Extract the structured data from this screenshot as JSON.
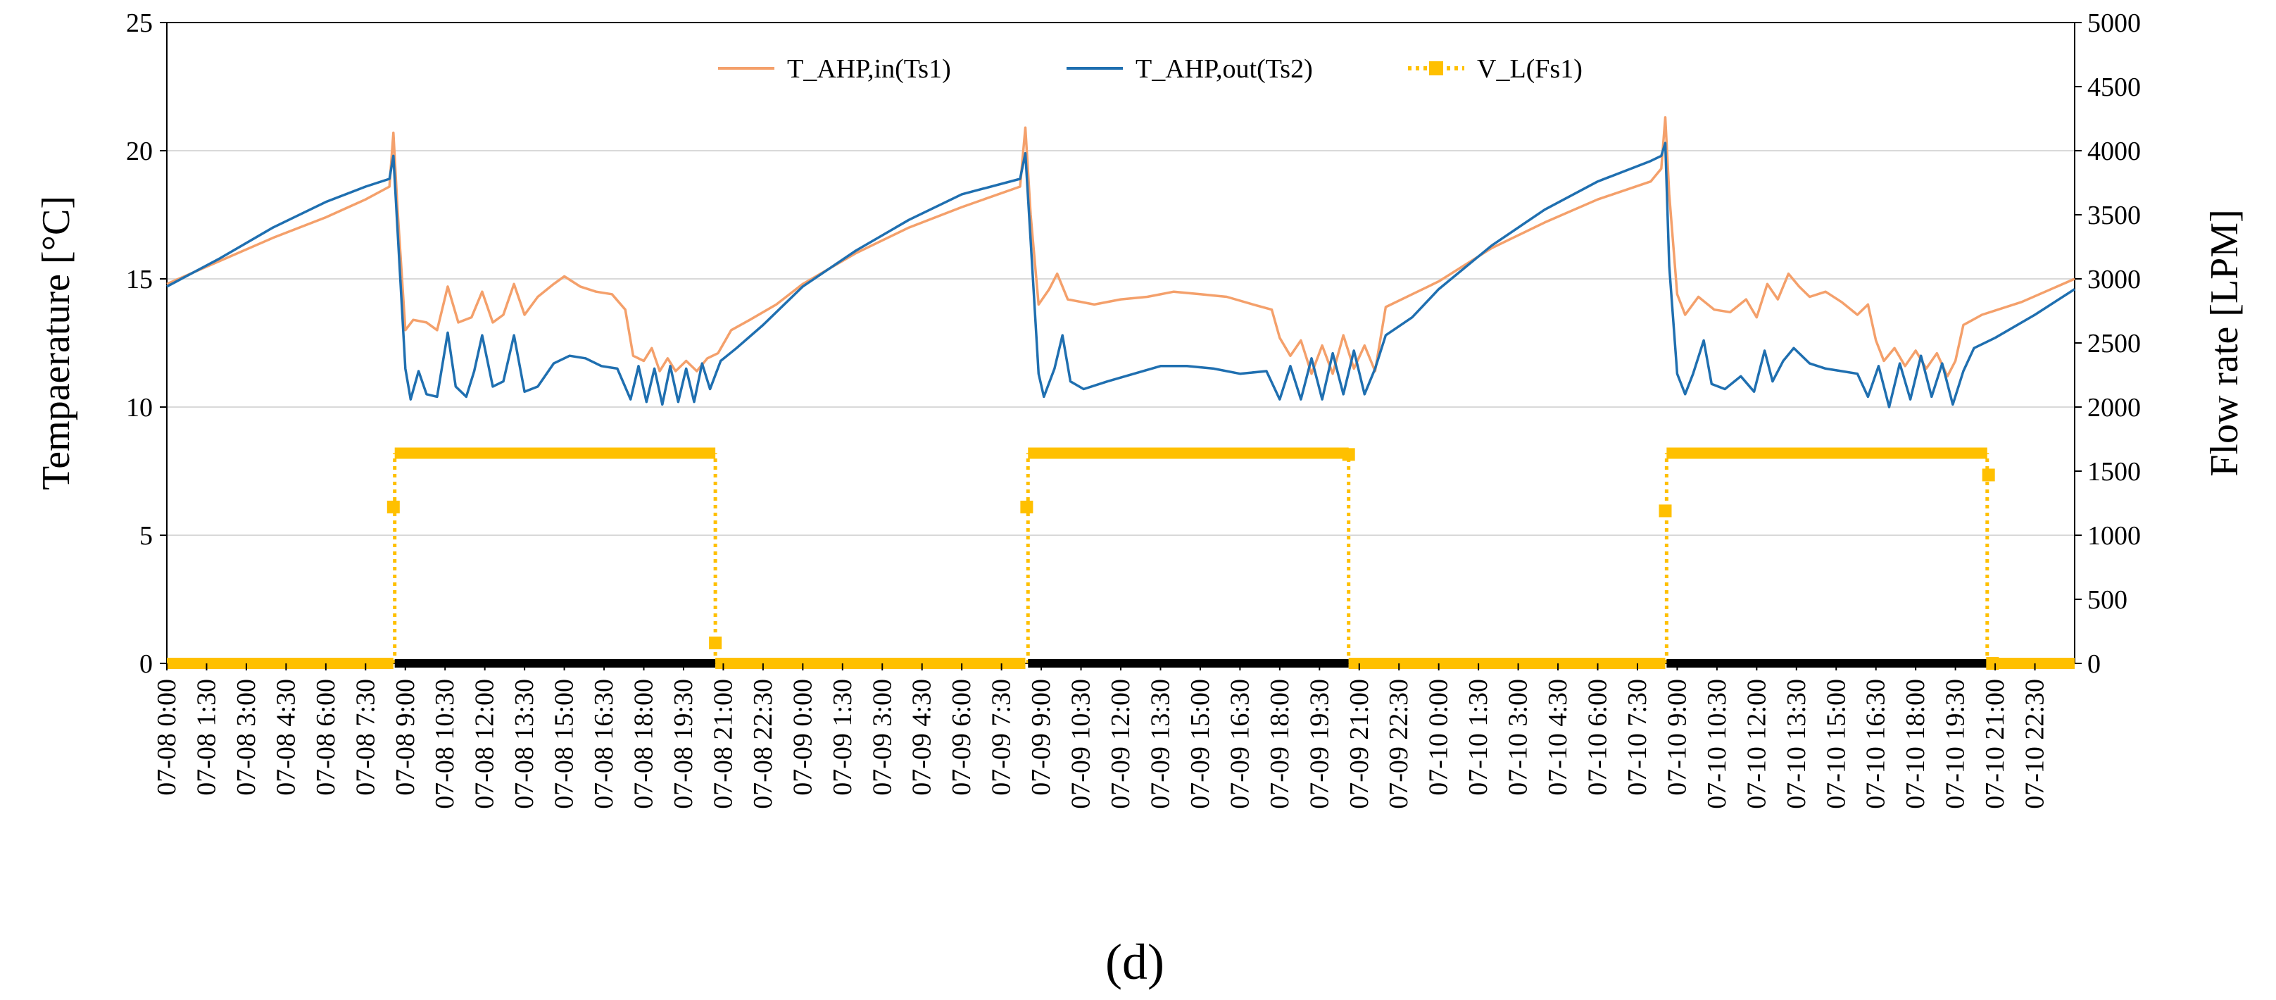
{
  "chart_data": {
    "type": "line",
    "panel_label": "(d)",
    "ylabel_left": "Tempaerature [°C]",
    "ylabel_right": "Flow rate [LPM]",
    "ylim_left": [
      0,
      25
    ],
    "ylim_right": [
      0,
      5000
    ],
    "yticks_left": [
      "0",
      "5",
      "10",
      "15",
      "20",
      "25"
    ],
    "yticks_right": [
      "0",
      "500",
      "1000",
      "1500",
      "2000",
      "2500",
      "3000",
      "3500",
      "4000",
      "4500",
      "5000"
    ],
    "grid": true,
    "legend_position": "top-center",
    "x_range_hours": [
      0,
      72
    ],
    "x_tick_labels": [
      "07-08 0:00",
      "07-08 1:30",
      "07-08 3:00",
      "07-08 4:30",
      "07-08 6:00",
      "07-08 7:30",
      "07-08 9:00",
      "07-08 10:30",
      "07-08 12:00",
      "07-08 13:30",
      "07-08 15:00",
      "07-08 16:30",
      "07-08 18:00",
      "07-08 19:30",
      "07-08 21:00",
      "07-08 22:30",
      "07-09 0:00",
      "07-09 1:30",
      "07-09 3:00",
      "07-09 4:30",
      "07-09 6:00",
      "07-09 7:30",
      "07-09 9:00",
      "07-09 10:30",
      "07-09 12:00",
      "07-09 13:30",
      "07-09 15:00",
      "07-09 16:30",
      "07-09 18:00",
      "07-09 19:30",
      "07-09 21:00",
      "07-09 22:30",
      "07-10 0:00",
      "07-10 1:30",
      "07-10 3:00",
      "07-10 4:30",
      "07-10 6:00",
      "07-10 7:30",
      "07-10 9:00",
      "07-10 10:30",
      "07-10 12:00",
      "07-10 13:30",
      "07-10 15:00",
      "07-10 16:30",
      "07-10 18:00",
      "07-10 19:30",
      "07-10 21:00",
      "07-10 22:30"
    ],
    "series": [
      {
        "name": "T_AHP,in(Ts1)",
        "axis": "left",
        "color": "#F4A06B",
        "style": "line",
        "points": [
          [
            0,
            14.8
          ],
          [
            2,
            15.7
          ],
          [
            4,
            16.6
          ],
          [
            6,
            17.4
          ],
          [
            7.5,
            18.1
          ],
          [
            8.4,
            18.6
          ],
          [
            8.55,
            20.7
          ],
          [
            8.7,
            17.8
          ],
          [
            9.0,
            13.0
          ],
          [
            9.3,
            13.4
          ],
          [
            9.8,
            13.3
          ],
          [
            10.2,
            13.0
          ],
          [
            10.6,
            14.7
          ],
          [
            11.0,
            13.3
          ],
          [
            11.5,
            13.5
          ],
          [
            11.9,
            14.5
          ],
          [
            12.3,
            13.3
          ],
          [
            12.7,
            13.6
          ],
          [
            13.1,
            14.8
          ],
          [
            13.5,
            13.6
          ],
          [
            14.0,
            14.3
          ],
          [
            14.6,
            14.8
          ],
          [
            15.0,
            15.1
          ],
          [
            15.6,
            14.7
          ],
          [
            16.2,
            14.5
          ],
          [
            16.8,
            14.4
          ],
          [
            17.3,
            13.8
          ],
          [
            17.6,
            12.0
          ],
          [
            18.0,
            11.8
          ],
          [
            18.3,
            12.3
          ],
          [
            18.6,
            11.4
          ],
          [
            18.9,
            11.9
          ],
          [
            19.2,
            11.4
          ],
          [
            19.6,
            11.8
          ],
          [
            20.0,
            11.4
          ],
          [
            20.4,
            11.9
          ],
          [
            20.8,
            12.1
          ],
          [
            21.3,
            13.0
          ],
          [
            22,
            13.4
          ],
          [
            23,
            14.0
          ],
          [
            24,
            14.8
          ],
          [
            26,
            16.0
          ],
          [
            28,
            17.0
          ],
          [
            30,
            17.8
          ],
          [
            32.2,
            18.6
          ],
          [
            32.4,
            20.9
          ],
          [
            32.6,
            17.5
          ],
          [
            32.9,
            14.0
          ],
          [
            33.3,
            14.6
          ],
          [
            33.6,
            15.2
          ],
          [
            34,
            14.2
          ],
          [
            35,
            14.0
          ],
          [
            36,
            14.2
          ],
          [
            37,
            14.3
          ],
          [
            38,
            14.5
          ],
          [
            39,
            14.4
          ],
          [
            40,
            14.3
          ],
          [
            41,
            14.0
          ],
          [
            41.7,
            13.8
          ],
          [
            42,
            12.7
          ],
          [
            42.4,
            12.0
          ],
          [
            42.8,
            12.6
          ],
          [
            43.2,
            11.3
          ],
          [
            43.6,
            12.4
          ],
          [
            44.0,
            11.3
          ],
          [
            44.4,
            12.8
          ],
          [
            44.8,
            11.5
          ],
          [
            45.2,
            12.4
          ],
          [
            45.6,
            11.4
          ],
          [
            46,
            13.9
          ],
          [
            47,
            14.4
          ],
          [
            48,
            14.9
          ],
          [
            50,
            16.2
          ],
          [
            52,
            17.2
          ],
          [
            54,
            18.1
          ],
          [
            56,
            18.8
          ],
          [
            56.4,
            19.3
          ],
          [
            56.55,
            21.3
          ],
          [
            56.7,
            18.3
          ],
          [
            57,
            14.4
          ],
          [
            57.3,
            13.6
          ],
          [
            57.8,
            14.3
          ],
          [
            58.4,
            13.8
          ],
          [
            59,
            13.7
          ],
          [
            59.6,
            14.2
          ],
          [
            60,
            13.5
          ],
          [
            60.4,
            14.8
          ],
          [
            60.8,
            14.2
          ],
          [
            61.2,
            15.2
          ],
          [
            61.6,
            14.7
          ],
          [
            62,
            14.3
          ],
          [
            62.6,
            14.5
          ],
          [
            63.2,
            14.1
          ],
          [
            63.8,
            13.6
          ],
          [
            64.2,
            14.0
          ],
          [
            64.5,
            12.6
          ],
          [
            64.8,
            11.8
          ],
          [
            65.2,
            12.3
          ],
          [
            65.6,
            11.6
          ],
          [
            66,
            12.2
          ],
          [
            66.4,
            11.5
          ],
          [
            66.8,
            12.1
          ],
          [
            67.2,
            11.2
          ],
          [
            67.5,
            11.8
          ],
          [
            67.8,
            13.2
          ],
          [
            68.5,
            13.6
          ],
          [
            70,
            14.1
          ],
          [
            72,
            15.0
          ]
        ]
      },
      {
        "name": "T_AHP,out(Ts2)",
        "axis": "left",
        "color": "#1F6FB0",
        "style": "line",
        "points": [
          [
            0,
            14.7
          ],
          [
            2,
            15.8
          ],
          [
            4,
            17.0
          ],
          [
            6,
            18.0
          ],
          [
            7.5,
            18.6
          ],
          [
            8.4,
            18.9
          ],
          [
            8.55,
            19.8
          ],
          [
            8.7,
            17.0
          ],
          [
            9.0,
            11.5
          ],
          [
            9.2,
            10.3
          ],
          [
            9.5,
            11.4
          ],
          [
            9.8,
            10.5
          ],
          [
            10.2,
            10.4
          ],
          [
            10.6,
            12.9
          ],
          [
            10.9,
            10.8
          ],
          [
            11.3,
            10.4
          ],
          [
            11.6,
            11.4
          ],
          [
            11.9,
            12.8
          ],
          [
            12.3,
            10.8
          ],
          [
            12.7,
            11.0
          ],
          [
            13.1,
            12.8
          ],
          [
            13.5,
            10.6
          ],
          [
            14.0,
            10.8
          ],
          [
            14.6,
            11.7
          ],
          [
            15.2,
            12.0
          ],
          [
            15.8,
            11.9
          ],
          [
            16.4,
            11.6
          ],
          [
            17.0,
            11.5
          ],
          [
            17.5,
            10.3
          ],
          [
            17.8,
            11.6
          ],
          [
            18.1,
            10.2
          ],
          [
            18.4,
            11.5
          ],
          [
            18.7,
            10.1
          ],
          [
            19.0,
            11.6
          ],
          [
            19.3,
            10.2
          ],
          [
            19.6,
            11.5
          ],
          [
            19.9,
            10.2
          ],
          [
            20.2,
            11.7
          ],
          [
            20.5,
            10.7
          ],
          [
            20.9,
            11.8
          ],
          [
            21.5,
            12.3
          ],
          [
            22.5,
            13.2
          ],
          [
            24,
            14.7
          ],
          [
            26,
            16.1
          ],
          [
            28,
            17.3
          ],
          [
            30,
            18.3
          ],
          [
            32.2,
            18.9
          ],
          [
            32.4,
            19.9
          ],
          [
            32.6,
            16.5
          ],
          [
            32.9,
            11.3
          ],
          [
            33.1,
            10.4
          ],
          [
            33.5,
            11.5
          ],
          [
            33.8,
            12.8
          ],
          [
            34.1,
            11.0
          ],
          [
            34.6,
            10.7
          ],
          [
            35.5,
            11.0
          ],
          [
            36.5,
            11.3
          ],
          [
            37.5,
            11.6
          ],
          [
            38.5,
            11.6
          ],
          [
            39.5,
            11.5
          ],
          [
            40.5,
            11.3
          ],
          [
            41.5,
            11.4
          ],
          [
            42,
            10.3
          ],
          [
            42.4,
            11.6
          ],
          [
            42.8,
            10.3
          ],
          [
            43.2,
            11.9
          ],
          [
            43.6,
            10.3
          ],
          [
            44.0,
            12.1
          ],
          [
            44.4,
            10.5
          ],
          [
            44.8,
            12.2
          ],
          [
            45.2,
            10.5
          ],
          [
            45.6,
            11.5
          ],
          [
            46,
            12.8
          ],
          [
            47,
            13.5
          ],
          [
            48,
            14.6
          ],
          [
            50,
            16.3
          ],
          [
            52,
            17.7
          ],
          [
            54,
            18.8
          ],
          [
            56,
            19.6
          ],
          [
            56.4,
            19.8
          ],
          [
            56.55,
            20.3
          ],
          [
            56.7,
            15.5
          ],
          [
            57,
            11.3
          ],
          [
            57.3,
            10.5
          ],
          [
            57.6,
            11.3
          ],
          [
            58,
            12.6
          ],
          [
            58.3,
            10.9
          ],
          [
            58.8,
            10.7
          ],
          [
            59.4,
            11.2
          ],
          [
            59.9,
            10.6
          ],
          [
            60.3,
            12.2
          ],
          [
            60.6,
            11.0
          ],
          [
            61,
            11.8
          ],
          [
            61.4,
            12.3
          ],
          [
            62,
            11.7
          ],
          [
            62.6,
            11.5
          ],
          [
            63.2,
            11.4
          ],
          [
            63.8,
            11.3
          ],
          [
            64.2,
            10.4
          ],
          [
            64.6,
            11.6
          ],
          [
            65,
            10.0
          ],
          [
            65.4,
            11.7
          ],
          [
            65.8,
            10.3
          ],
          [
            66.2,
            12.0
          ],
          [
            66.6,
            10.4
          ],
          [
            67,
            11.7
          ],
          [
            67.4,
            10.1
          ],
          [
            67.8,
            11.4
          ],
          [
            68.2,
            12.3
          ],
          [
            69,
            12.7
          ],
          [
            70.5,
            13.6
          ],
          [
            72,
            14.6
          ]
        ]
      },
      {
        "name": "V_L(Fs1)",
        "axis": "right",
        "color": "#FFC000",
        "style": "dotted-markers",
        "on_value": 1640,
        "off_value": 0,
        "segments": [
          [
            0,
            8.55,
            0
          ],
          [
            8.6,
            20.7,
            1640
          ],
          [
            20.7,
            32.4,
            0
          ],
          [
            32.5,
            44.6,
            1640
          ],
          [
            44.6,
            56.55,
            0
          ],
          [
            56.6,
            68.7,
            1640
          ],
          [
            68.7,
            72,
            0
          ]
        ],
        "transition_points": [
          [
            8.55,
            1220
          ],
          [
            20.7,
            160
          ],
          [
            32.45,
            1220
          ],
          [
            44.6,
            1630
          ],
          [
            56.55,
            1190
          ],
          [
            68.75,
            1470
          ],
          [
            68.9,
            0
          ]
        ]
      }
    ]
  }
}
